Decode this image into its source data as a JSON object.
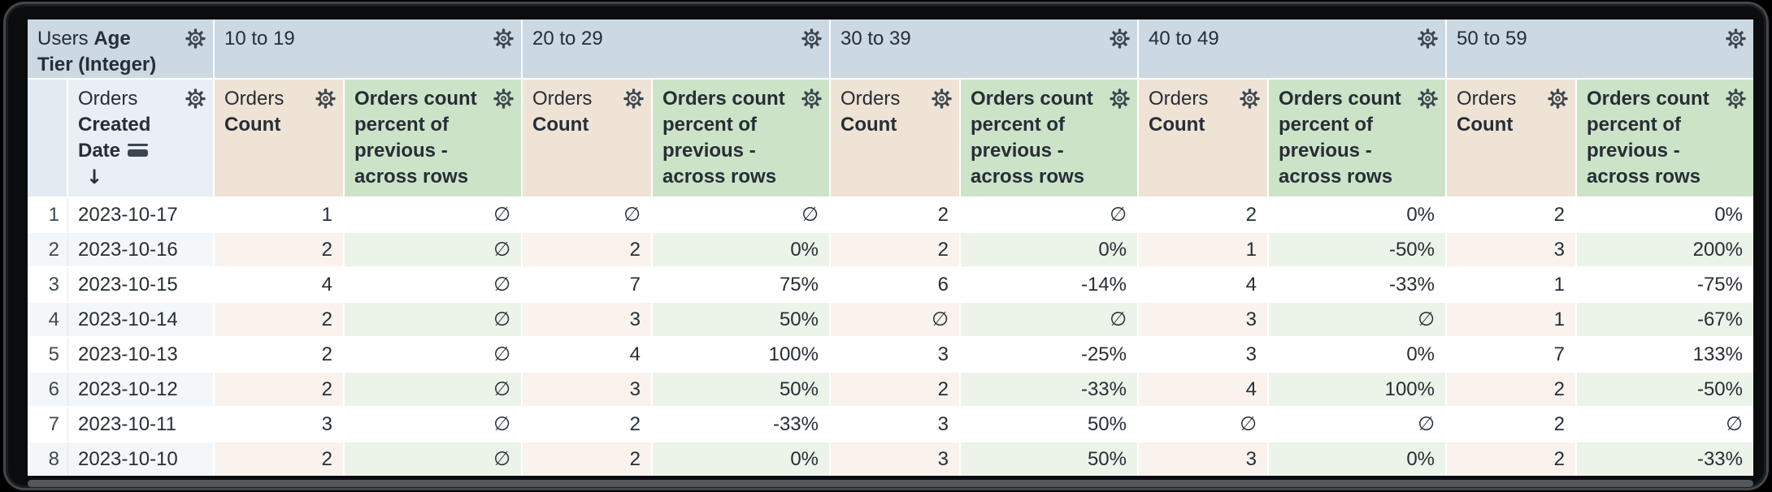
{
  "table": {
    "corner": {
      "view": "Users",
      "field": "Age Tier (Integer)"
    },
    "row_dimension": {
      "view": "Orders",
      "field": "Created Date"
    },
    "tiers": [
      {
        "label": "10 to 19"
      },
      {
        "label": "20 to 29"
      },
      {
        "label": "30 to 39"
      },
      {
        "label": "40 to 49"
      },
      {
        "label": "50 to 59"
      }
    ],
    "measure_count": {
      "view": "Orders",
      "field": "Count"
    },
    "measure_percent": {
      "label": "Orders count percent of previous - across rows"
    },
    "null_symbol": "∅",
    "rows": [
      {
        "index": "1",
        "date": "2023-10-17",
        "cells": [
          "1",
          "∅",
          "∅",
          "∅",
          "2",
          "∅",
          "2",
          "0%",
          "2",
          "0%"
        ]
      },
      {
        "index": "2",
        "date": "2023-10-16",
        "cells": [
          "2",
          "∅",
          "2",
          "0%",
          "2",
          "0%",
          "1",
          "-50%",
          "3",
          "200%"
        ]
      },
      {
        "index": "3",
        "date": "2023-10-15",
        "cells": [
          "4",
          "∅",
          "7",
          "75%",
          "6",
          "-14%",
          "4",
          "-33%",
          "1",
          "-75%"
        ]
      },
      {
        "index": "4",
        "date": "2023-10-14",
        "cells": [
          "2",
          "∅",
          "3",
          "50%",
          "∅",
          "∅",
          "3",
          "∅",
          "1",
          "-67%"
        ]
      },
      {
        "index": "5",
        "date": "2023-10-13",
        "cells": [
          "2",
          "∅",
          "4",
          "100%",
          "3",
          "-25%",
          "3",
          "0%",
          "7",
          "133%"
        ]
      },
      {
        "index": "6",
        "date": "2023-10-12",
        "cells": [
          "2",
          "∅",
          "3",
          "50%",
          "2",
          "-33%",
          "4",
          "100%",
          "2",
          "-50%"
        ]
      },
      {
        "index": "7",
        "date": "2023-10-11",
        "cells": [
          "3",
          "∅",
          "2",
          "-33%",
          "3",
          "50%",
          "∅",
          "∅",
          "2",
          "∅"
        ]
      },
      {
        "index": "8",
        "date": "2023-10-10",
        "cells": [
          "2",
          "∅",
          "2",
          "0%",
          "3",
          "50%",
          "3",
          "0%",
          "2",
          "-33%"
        ]
      }
    ]
  },
  "icons": {
    "gear": "⚙",
    "chevron_right": "›",
    "list": "≡",
    "sort_desc": "↓"
  },
  "colors": {
    "pivot-header": "#ccd8e2",
    "dim-header": "#e9eff5",
    "index-header": "#e3eaf2",
    "measure-header-tan": "#efe3d6",
    "measure-header-green": "#cde3c8",
    "row-tint-blue": "#f4f7fa",
    "row-tint-tan": "#faf2ec",
    "row-tint-green": "#ecf4e9",
    "text": "#262e36",
    "icon": "#3d464e",
    "scrollbar": "#54585b",
    "frame": "#000000"
  }
}
